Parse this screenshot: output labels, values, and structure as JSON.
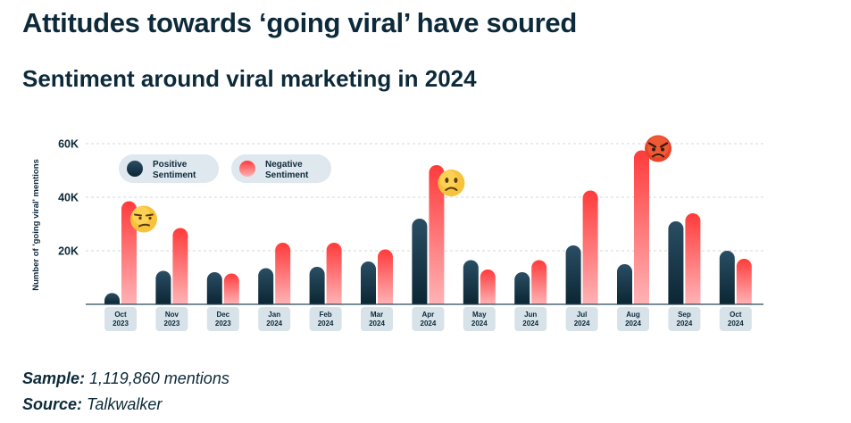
{
  "title": "Attitudes towards ‘going viral’ have soured",
  "subtitle": "Sentiment around viral marketing in 2024",
  "footer": {
    "sample_label": "Sample:",
    "sample_value": "1,119,860 mentions",
    "source_label": "Source:",
    "source_value": "Talkwalker"
  },
  "colors": {
    "positive_top": "#2a4e64",
    "positive_bottom": "#0b2633",
    "negative_top": "#ff3b3b",
    "negative_bottom": "#ffb3b6",
    "legend_bg": "#dfe8ee",
    "tick_bg": "#d7e2e9",
    "text": "#0d2a3a"
  },
  "chart_data": {
    "type": "bar",
    "title": "Sentiment around viral marketing in 2024",
    "ylabel": "Number of 'going viral' mentions",
    "xlabel": "",
    "ylim": [
      0,
      60000
    ],
    "yticks": [
      20000,
      40000,
      60000
    ],
    "ytick_labels": [
      "20K",
      "40K",
      "60K"
    ],
    "categories": [
      [
        "Oct",
        "2023"
      ],
      [
        "Nov",
        "2023"
      ],
      [
        "Dec",
        "2023"
      ],
      [
        "Jan",
        "2024"
      ],
      [
        "Feb",
        "2024"
      ],
      [
        "Mar",
        "2024"
      ],
      [
        "Apr",
        "2024"
      ],
      [
        "May",
        "2024"
      ],
      [
        "Jun",
        "2024"
      ],
      [
        "Jul",
        "2024"
      ],
      [
        "Aug",
        "2024"
      ],
      [
        "Sep",
        "2024"
      ],
      [
        "Oct",
        "2024"
      ]
    ],
    "series": [
      {
        "name": "Positive Sentiment",
        "legend_lines": [
          "Positive",
          "Sentiment"
        ],
        "values": [
          4200,
          12500,
          12000,
          13500,
          14000,
          16000,
          32000,
          16500,
          12000,
          22000,
          15000,
          31000,
          20000
        ]
      },
      {
        "name": "Negative Sentiment",
        "legend_lines": [
          "Negative",
          "Sentiment"
        ],
        "values": [
          38500,
          28500,
          11500,
          23000,
          23000,
          20500,
          52000,
          13000,
          16500,
          42500,
          57500,
          34000,
          17000
        ]
      }
    ],
    "annotations": [
      {
        "category_index": 0,
        "series": "Negative Sentiment",
        "icon": "unamused-face-icon"
      },
      {
        "category_index": 6,
        "series": "Negative Sentiment",
        "icon": "slightly-frowning-face-icon"
      },
      {
        "category_index": 10,
        "series": "Negative Sentiment",
        "icon": "angry-face-icon"
      }
    ],
    "grid": true,
    "legend": "top-left"
  }
}
